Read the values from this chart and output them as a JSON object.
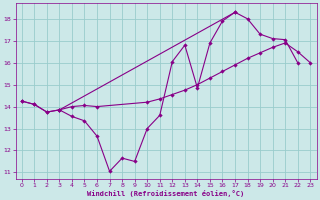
{
  "xlabel": "Windchill (Refroidissement éolien,°C)",
  "xlim": [
    -0.5,
    23.5
  ],
  "ylim": [
    10.7,
    18.7
  ],
  "yticks": [
    11,
    12,
    13,
    14,
    15,
    16,
    17,
    18
  ],
  "xticks": [
    0,
    1,
    2,
    3,
    4,
    5,
    6,
    7,
    8,
    9,
    10,
    11,
    12,
    13,
    14,
    15,
    16,
    17,
    18,
    19,
    20,
    21,
    22,
    23
  ],
  "bg_color": "#cce8e8",
  "line_color": "#880088",
  "grid_color": "#99cccc",
  "line1_x": [
    0,
    1,
    2,
    3,
    4,
    5,
    6,
    7,
    8,
    9,
    10,
    11,
    12,
    13,
    14,
    15,
    16,
    17,
    18,
    19,
    20,
    21,
    22
  ],
  "line1_y": [
    14.25,
    14.1,
    13.75,
    13.85,
    13.55,
    13.35,
    12.65,
    11.05,
    11.65,
    11.5,
    13.0,
    13.6,
    16.05,
    16.8,
    14.85,
    16.9,
    17.9,
    18.3,
    18.0,
    17.3,
    17.1,
    17.05,
    16.0
  ],
  "line2_x": [
    3,
    17
  ],
  "line2_y": [
    13.85,
    18.3
  ],
  "line3_x": [
    0,
    1,
    2,
    3,
    4,
    5,
    6,
    10,
    11,
    12,
    13,
    14,
    15,
    16,
    17,
    18,
    19,
    20,
    21,
    22,
    23
  ],
  "line3_y": [
    14.25,
    14.1,
    13.75,
    13.85,
    14.0,
    14.05,
    14.0,
    14.2,
    14.35,
    14.55,
    14.75,
    15.0,
    15.3,
    15.6,
    15.9,
    16.2,
    16.45,
    16.7,
    16.9,
    16.5,
    16.0
  ]
}
